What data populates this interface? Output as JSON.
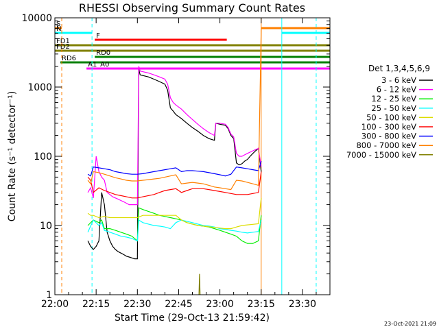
{
  "chart_data": {
    "type": "line",
    "title": "RHESSI Observing Summary Count Rates",
    "xlabel": "Start Time (29-Oct-13 21:59:42)",
    "ylabel": "Count Rate (s⁻¹ detector⁻¹)",
    "xlim": [
      0,
      100
    ],
    "ylim": [
      1,
      10000
    ],
    "yscale": "log",
    "x_ticks": [
      {
        "t": 0,
        "label": "22:00"
      },
      {
        "t": 15,
        "label": "22:15"
      },
      {
        "t": 30,
        "label": "22:30"
      },
      {
        "t": 45,
        "label": "22:45"
      },
      {
        "t": 60,
        "label": "23:00"
      },
      {
        "t": 75,
        "label": "23:15"
      },
      {
        "t": 90,
        "label": "23:30"
      }
    ],
    "y_ticks": [
      {
        "v": 1,
        "label": "1"
      },
      {
        "v": 10,
        "label": "10"
      },
      {
        "v": 100,
        "label": "100"
      },
      {
        "v": 1000,
        "label": "1000"
      },
      {
        "v": 10000,
        "label": "10000"
      }
    ],
    "legend_title": "Det 1,3,4,5,6,9",
    "legend_position": "right",
    "series": [
      {
        "name": "3 - 6 keV",
        "color": "#000000",
        "x": [
          12,
          13,
          14,
          15,
          16,
          17,
          18,
          19,
          20,
          21,
          22,
          23,
          24,
          25,
          26,
          27,
          28,
          29,
          30,
          30.5,
          31,
          34,
          36,
          38,
          40,
          41,
          42,
          43,
          44,
          46,
          48,
          50,
          52,
          54,
          56,
          58,
          58.5,
          60,
          62,
          63,
          64,
          64.5,
          65,
          66,
          67,
          68,
          69,
          70,
          71,
          72,
          73,
          74,
          75
        ],
        "y": [
          6,
          5,
          4.5,
          5,
          6,
          30,
          20,
          8,
          6,
          5,
          4.5,
          4.2,
          4,
          3.8,
          3.6,
          3.5,
          3.4,
          3.3,
          3.3,
          1800,
          1500,
          1400,
          1300,
          1200,
          1100,
          900,
          500,
          450,
          400,
          350,
          300,
          260,
          230,
          200,
          180,
          170,
          300,
          290,
          280,
          250,
          200,
          190,
          180,
          80,
          75,
          78,
          85,
          90,
          100,
          110,
          120,
          130,
          60
        ]
      },
      {
        "name": "6 - 12 keV",
        "color": "#ff00ff",
        "x": [
          12,
          13,
          14,
          15,
          16,
          17,
          18,
          19,
          20,
          21,
          22,
          23,
          24,
          25,
          26,
          27,
          28,
          29,
          30,
          30.5,
          31,
          34,
          36,
          38,
          40,
          41,
          42,
          43,
          44,
          46,
          48,
          50,
          52,
          54,
          56,
          58,
          58.5,
          60,
          62,
          63,
          64,
          64.5,
          65,
          66,
          67,
          68,
          69,
          70,
          71,
          72,
          73,
          74,
          75
        ],
        "y": [
          30,
          35,
          25,
          100,
          60,
          50,
          45,
          30,
          28,
          26,
          25,
          24,
          23,
          22,
          21,
          20,
          20,
          20,
          20,
          2000,
          1700,
          1600,
          1500,
          1400,
          1300,
          1100,
          700,
          600,
          550,
          480,
          400,
          340,
          290,
          250,
          220,
          200,
          300,
          300,
          290,
          260,
          210,
          200,
          190,
          110,
          100,
          100,
          105,
          110,
          115,
          120,
          125,
          130,
          70
        ]
      },
      {
        "name": "12 - 25 keV",
        "color": "#00ee00",
        "x": [
          12,
          14,
          16,
          17,
          18,
          20,
          22,
          24,
          26,
          28,
          30,
          30.5,
          32,
          34,
          36,
          38,
          40,
          42,
          44,
          46,
          48,
          50,
          52,
          54,
          56,
          58,
          60,
          62,
          64,
          66,
          68,
          70,
          72,
          74,
          75
        ],
        "y": [
          10,
          12,
          11,
          12,
          9,
          9,
          8.5,
          8,
          7.5,
          7,
          6,
          18,
          17,
          16,
          15,
          14,
          13.5,
          13,
          12.5,
          12,
          11,
          10.5,
          10,
          9.8,
          9.5,
          9,
          8.5,
          8,
          7.5,
          7,
          6,
          5.5,
          5.5,
          6,
          14
        ]
      },
      {
        "name": "25 - 50 keV",
        "color": "#00ffff",
        "x": [
          12,
          14,
          16,
          17,
          18,
          20,
          22,
          24,
          26,
          28,
          30,
          30.5,
          32,
          34,
          36,
          38,
          40,
          42,
          44,
          46,
          48,
          50,
          52,
          54,
          56,
          58,
          60,
          62,
          64,
          66,
          68,
          70,
          72,
          74,
          75
        ],
        "y": [
          8,
          12,
          10,
          11,
          8.5,
          8,
          7.5,
          7,
          6.8,
          6.5,
          6,
          12,
          11,
          10.5,
          10,
          9.8,
          9.5,
          9,
          11,
          12,
          11.5,
          11,
          10.5,
          10,
          9.8,
          9.5,
          9,
          8.8,
          8.5,
          8.3,
          8,
          7.8,
          8,
          8.2,
          12
        ]
      },
      {
        "name": "50 - 100 keV",
        "color": "#dddd00",
        "x": [
          12,
          13,
          14,
          16,
          18,
          20,
          22,
          24,
          26,
          28,
          30,
          32,
          34,
          36,
          38,
          40,
          42,
          44,
          46,
          48,
          50,
          52,
          54,
          56,
          58,
          60,
          62,
          64,
          66,
          68,
          70,
          72,
          74,
          75
        ],
        "y": [
          15,
          14,
          14,
          13,
          13.5,
          13,
          13,
          13,
          13,
          13,
          13,
          14,
          14,
          14,
          14,
          14,
          14,
          14,
          12,
          11,
          10.5,
          10,
          9.8,
          9.6,
          9.4,
          9.2,
          9,
          9,
          9.5,
          10,
          10.2,
          10.4,
          10.6,
          25
        ]
      },
      {
        "name": "100 - 300 keV",
        "color": "#ff0000",
        "x": [
          12,
          13,
          14,
          16,
          18,
          20,
          22,
          24,
          26,
          28,
          30,
          32,
          34,
          36,
          38,
          40,
          42,
          44,
          46,
          48,
          50,
          52,
          54,
          56,
          58,
          60,
          62,
          64,
          66,
          68,
          70,
          72,
          74,
          75
        ],
        "y": [
          50,
          45,
          30,
          35,
          32,
          30,
          28,
          27,
          26,
          25,
          25,
          26,
          27,
          28,
          30,
          32,
          33,
          34,
          30,
          32,
          34,
          34,
          34,
          33,
          32,
          31,
          30,
          29,
          28,
          28,
          28,
          29,
          30,
          60
        ]
      },
      {
        "name": "300 - 800 keV",
        "color": "#0000ff",
        "x": [
          12,
          13,
          14,
          16,
          18,
          20,
          22,
          24,
          26,
          28,
          30,
          32,
          34,
          36,
          38,
          40,
          42,
          44,
          46,
          48,
          50,
          52,
          54,
          56,
          58,
          60,
          62,
          64,
          66,
          68,
          70,
          72,
          74,
          75
        ],
        "y": [
          55,
          52,
          70,
          68,
          66,
          64,
          60,
          58,
          56,
          55,
          55,
          56,
          58,
          60,
          62,
          64,
          66,
          68,
          60,
          62,
          62,
          61,
          60,
          58,
          56,
          54,
          52,
          55,
          70,
          68,
          66,
          64,
          62,
          85
        ]
      },
      {
        "name": "800 - 7000 keV",
        "color": "#ff8000",
        "x": [
          12,
          13,
          14,
          16,
          18,
          20,
          22,
          24,
          26,
          28,
          30,
          32,
          34,
          36,
          38,
          40,
          42,
          44,
          46,
          48,
          50,
          52,
          54,
          56,
          58,
          60,
          62,
          64,
          66,
          68,
          70,
          72,
          74,
          75
        ],
        "y": [
          45,
          40,
          60,
          58,
          55,
          52,
          49,
          47,
          45,
          44,
          44,
          45,
          46,
          47,
          48,
          50,
          52,
          54,
          40,
          41,
          42,
          41,
          40,
          38,
          36,
          35,
          34,
          33,
          45,
          44,
          42,
          40,
          38,
          7000
        ]
      },
      {
        "name": "7000 - 15000 keV",
        "color": "#808000",
        "x": [
          52.4,
          52.6,
          52.8
        ],
        "y": [
          1,
          2,
          1
        ]
      }
    ],
    "bars": [
      {
        "label": "S",
        "color": "#ff8000",
        "x": [
          0,
          2.5
        ]
      },
      {
        "label": "S",
        "color": "#ff8000",
        "x": [
          75,
          100
        ]
      },
      {
        "label": "N",
        "color": "#00ffff",
        "x": [
          0,
          13.5
        ]
      },
      {
        "label": "N",
        "color": "#00ffff",
        "x": [
          82.5,
          100
        ]
      },
      {
        "label": "F",
        "color": "#ff0000",
        "x": [
          14.5,
          62.5
        ]
      },
      {
        "label": "FD1",
        "color": "#808000",
        "x": [
          0,
          100
        ]
      },
      {
        "label": "FD2",
        "color": "#808000",
        "x": [
          0,
          100
        ]
      },
      {
        "label": "RD0",
        "color": "#008000",
        "x": [
          14.5,
          100
        ]
      },
      {
        "label": "RD6",
        "color": "#008000",
        "x": [
          2,
          100
        ]
      },
      {
        "label": "A1",
        "color": "#ff00ff",
        "x": [
          11.5,
          100
        ]
      },
      {
        "label": "A0",
        "color": "#ff00ff",
        "x": [
          16,
          17.5
        ]
      }
    ],
    "vertical_markers": [
      {
        "x": 2.5,
        "color": "#ff8000",
        "style": "dashed"
      },
      {
        "x": 13.5,
        "color": "#00ffff",
        "style": "dashed"
      },
      {
        "x": 75,
        "color": "#ff8000",
        "style": "solid"
      },
      {
        "x": 82.5,
        "color": "#00ffff",
        "style": "solid"
      },
      {
        "x": 95,
        "color": "#00ffff",
        "style": "dashed"
      }
    ],
    "footer_stamp": "23-Oct-2021 21:09"
  }
}
